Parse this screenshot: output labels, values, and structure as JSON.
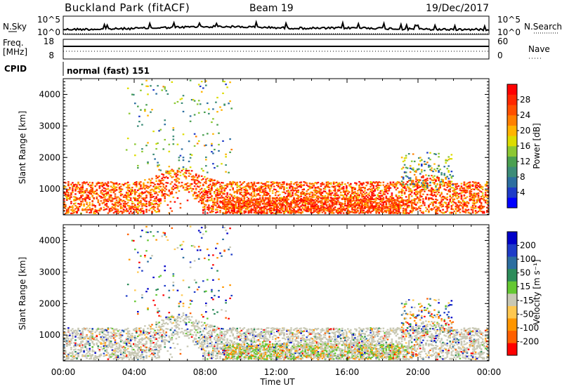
{
  "header": {
    "site": "Buckland Park (fitACF)",
    "beam": "Beam 19",
    "date": "19/Dec/2017"
  },
  "strip_nsky": {
    "left_label": "N.Sky",
    "left_ticks": [
      "10^5",
      "10^0"
    ],
    "right_label": "N.Search",
    "right_ticks": [
      "10^5",
      "10^0"
    ]
  },
  "strip_freq": {
    "left_label_1": "Freq.",
    "left_label_2": "[MHz]",
    "left_ticks": [
      "18",
      "8"
    ],
    "right_label": "Nave",
    "right_ticks": [
      "60",
      "0"
    ]
  },
  "cpid": {
    "label": "CPID",
    "value": "normal (fast) 151"
  },
  "chart_data": {
    "type": "heatmap",
    "xlabel": "Time UT",
    "x_ticks": [
      "00:00",
      "04:00",
      "08:00",
      "12:00",
      "16:00",
      "20:00",
      "00:00"
    ],
    "xlim_hours": [
      0,
      24
    ],
    "ylabel": "Slant Range [km]",
    "y_ticks": [
      1000,
      2000,
      3000,
      4000
    ],
    "ylim_km": [
      180,
      4500
    ],
    "panels": [
      {
        "name": "power",
        "colorbar_label": "Power [dB]",
        "colorbar_ticks": [
          "28",
          "24",
          "20",
          "16",
          "12",
          "8",
          "4"
        ],
        "range": [
          0,
          32
        ],
        "colors": [
          "#0000ff",
          "#1e3cc8",
          "#2c6ea0",
          "#3c8c78",
          "#4aa050",
          "#8cc832",
          "#dcdc00",
          "#ffb400",
          "#ff8000",
          "#ff5000",
          "#ff2800",
          "#ff0000"
        ]
      },
      {
        "name": "velocity",
        "colorbar_label": "Velocity [m s⁻¹]",
        "colorbar_ticks": [
          "200",
          "100",
          "50",
          "15",
          "-15",
          "-50",
          "-100",
          "-200"
        ],
        "range": [
          -250,
          250
        ],
        "colors": [
          "#ff0000",
          "#ff6000",
          "#ff9600",
          "#ffc850",
          "#c8c8b4",
          "#64c832",
          "#2c8c5a",
          "#2c6ea0",
          "#1e3cc8",
          "#0000c8"
        ]
      }
    ]
  }
}
